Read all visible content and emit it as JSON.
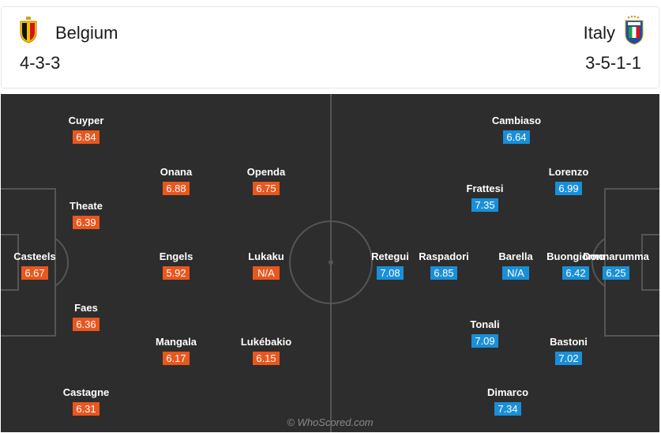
{
  "home": {
    "name": "Belgium",
    "formation": "4-3-3",
    "crest_icon": "belgium-crest-icon",
    "rating_color": "#e8571e",
    "players": [
      {
        "name": "Cuyper",
        "rating": "6.84"
      },
      {
        "name": "Onana",
        "rating": "6.88"
      },
      {
        "name": "Openda",
        "rating": "6.75"
      },
      {
        "name": "Theate",
        "rating": "6.39"
      },
      {
        "name": "Casteels",
        "rating": "6.67"
      },
      {
        "name": "Engels",
        "rating": "5.92"
      },
      {
        "name": "Lukaku",
        "rating": "N/A"
      },
      {
        "name": "Faes",
        "rating": "6.36"
      },
      {
        "name": "Mangala",
        "rating": "6.17"
      },
      {
        "name": "Lukébakio",
        "rating": "6.15"
      },
      {
        "name": "Castagne",
        "rating": "6.31"
      }
    ]
  },
  "away": {
    "name": "Italy",
    "formation": "3-5-1-1",
    "crest_icon": "italy-crest-icon",
    "rating_color": "#1a8fd8",
    "players": [
      {
        "name": "Cambiaso",
        "rating": "6.64"
      },
      {
        "name": "Lorenzo",
        "rating": "6.99"
      },
      {
        "name": "Frattesi",
        "rating": "7.35"
      },
      {
        "name": "Retegui",
        "rating": "7.08"
      },
      {
        "name": "Raspadori",
        "rating": "6.85"
      },
      {
        "name": "Barella",
        "rating": "N/A"
      },
      {
        "name": "Buongiorno",
        "rating": "6.42"
      },
      {
        "name": "Donnarumma",
        "rating": "6.25"
      },
      {
        "name": "Tonali",
        "rating": "7.09"
      },
      {
        "name": "Bastoni",
        "rating": "7.02"
      },
      {
        "name": "Dimarco",
        "rating": "7.34"
      }
    ]
  },
  "watermark": "© WhoScored.com"
}
